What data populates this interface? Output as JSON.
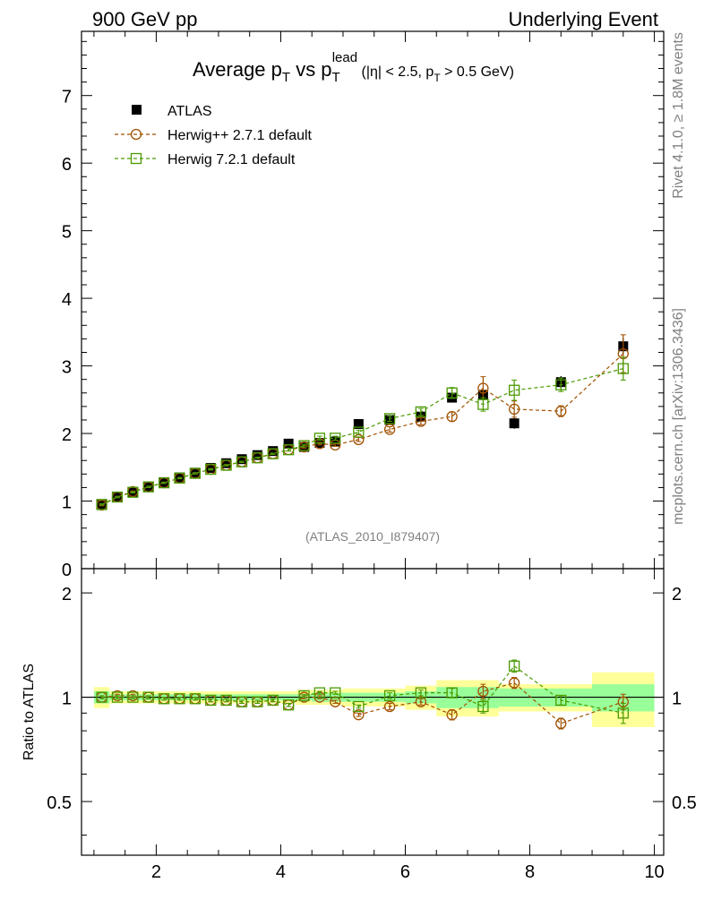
{
  "header": {
    "left": "900 GeV pp",
    "right": "Underlying Event"
  },
  "side": {
    "rivet": "Rivet 4.1.0, ≥ 1.8M events",
    "source": "mcplots.cern.ch [arXiv:1306.3436]"
  },
  "chart_data": {
    "type": "line",
    "title": "Average pT vs pT^lead (|η| < 2.5, pT > 0.5 GeV)",
    "title_parts": {
      "main": "Average p",
      "sub1": "T",
      "vs": " vs p",
      "sub2": "T",
      "sup": "lead",
      "cond_a": " (|η| < 2.5, p",
      "cond_sub": "T",
      "cond_b": " > 0.5 GeV)"
    },
    "analysis_tag": "(ATLAS_2010_I879407)",
    "xlim": [
      0.8,
      10.15
    ],
    "ylim": [
      0,
      7.95
    ],
    "ratio_ylim": [
      0.35,
      2.35
    ],
    "ratio_ylabel": "Ratio to ATLAS",
    "x_ticks": [
      2,
      4,
      6,
      8,
      10
    ],
    "x_tick_labels": [
      "2",
      "4",
      "6",
      "8",
      "10"
    ],
    "y_ticks": [
      0,
      1,
      2,
      3,
      4,
      5,
      6,
      7
    ],
    "y_tick_labels": [
      "0",
      "1",
      "2",
      "3",
      "4",
      "5",
      "6",
      "7"
    ],
    "ratio_ticks": [
      0.5,
      1,
      2
    ],
    "ratio_tick_labels": [
      "0.5",
      "1",
      "2"
    ],
    "legend_position": "top-left",
    "x": [
      1.125,
      1.375,
      1.625,
      1.875,
      2.125,
      2.375,
      2.625,
      2.875,
      3.125,
      3.375,
      3.625,
      3.875,
      4.125,
      4.375,
      4.625,
      4.875,
      5.25,
      5.75,
      6.25,
      6.75,
      7.25,
      7.75,
      8.5,
      9.5
    ],
    "band_edges": [
      1.0,
      1.25,
      1.5,
      1.75,
      2.0,
      2.25,
      2.5,
      2.75,
      3.0,
      3.25,
      3.5,
      3.75,
      4.0,
      4.25,
      4.5,
      4.75,
      5.0,
      5.5,
      6.0,
      6.5,
      7.0,
      7.5,
      8.0,
      9.0,
      10.0
    ],
    "series": [
      {
        "name": "ATLAS",
        "kind": "data",
        "color": "#000000",
        "values": [
          0.94,
          1.06,
          1.13,
          1.21,
          1.28,
          1.35,
          1.42,
          1.49,
          1.56,
          1.62,
          1.68,
          1.74,
          1.85,
          1.8,
          1.86,
          1.88,
          2.14,
          2.2,
          2.25,
          2.53,
          2.57,
          2.15,
          2.76,
          3.29
        ],
        "stat_err": [
          0.01,
          0.01,
          0.01,
          0.01,
          0.01,
          0.01,
          0.01,
          0.01,
          0.01,
          0.01,
          0.01,
          0.01,
          0.02,
          0.02,
          0.02,
          0.02,
          0.02,
          0.03,
          0.04,
          0.05,
          0.06,
          0.08,
          0.09,
          0.12
        ]
      },
      {
        "name": "Herwig++ 2.7.1 default",
        "kind": "mc",
        "marker": "circle",
        "color": "#a05000",
        "values": [
          0.94,
          1.06,
          1.14,
          1.21,
          1.27,
          1.34,
          1.41,
          1.47,
          1.53,
          1.58,
          1.64,
          1.7,
          1.76,
          1.8,
          1.85,
          1.83,
          1.91,
          2.06,
          2.18,
          2.25,
          2.67,
          2.36,
          2.33,
          3.18
        ],
        "errors": [
          0.01,
          0.01,
          0.01,
          0.01,
          0.01,
          0.01,
          0.01,
          0.01,
          0.01,
          0.01,
          0.01,
          0.01,
          0.02,
          0.02,
          0.02,
          0.02,
          0.03,
          0.04,
          0.05,
          0.07,
          0.17,
          0.12,
          0.08,
          0.28
        ]
      },
      {
        "name": "Herwig 7.2.1 default",
        "kind": "mc",
        "marker": "square",
        "color": "#4a9a00",
        "values": [
          0.95,
          1.06,
          1.13,
          1.21,
          1.27,
          1.34,
          1.41,
          1.47,
          1.53,
          1.58,
          1.64,
          1.7,
          1.76,
          1.82,
          1.93,
          1.93,
          2.02,
          2.22,
          2.32,
          2.6,
          2.43,
          2.64,
          2.72,
          2.96
        ],
        "errors": [
          0.01,
          0.01,
          0.01,
          0.01,
          0.01,
          0.01,
          0.01,
          0.01,
          0.01,
          0.01,
          0.01,
          0.01,
          0.02,
          0.02,
          0.03,
          0.03,
          0.03,
          0.04,
          0.05,
          0.08,
          0.1,
          0.15,
          0.1,
          0.17
        ]
      }
    ],
    "ratio_series": [
      {
        "name": "Herwig++ 2.7.1 default",
        "values": [
          1.0,
          1.01,
          1.01,
          1.0,
          0.99,
          0.99,
          0.99,
          0.98,
          0.98,
          0.97,
          0.97,
          0.98,
          0.95,
          1.0,
          1.0,
          0.97,
          0.89,
          0.94,
          0.97,
          0.89,
          1.04,
          1.1,
          0.84,
          0.97
        ],
        "errors": [
          0.01,
          0.01,
          0.01,
          0.01,
          0.01,
          0.01,
          0.01,
          0.01,
          0.01,
          0.01,
          0.01,
          0.01,
          0.01,
          0.01,
          0.01,
          0.01,
          0.01,
          0.02,
          0.02,
          0.03,
          0.05,
          0.04,
          0.03,
          0.05
        ]
      },
      {
        "name": "Herwig 7.2.1 default",
        "values": [
          1.0,
          1.0,
          1.0,
          1.0,
          0.99,
          0.99,
          0.99,
          0.98,
          0.98,
          0.97,
          0.97,
          0.98,
          0.95,
          1.01,
          1.03,
          1.03,
          0.94,
          1.01,
          1.03,
          1.03,
          0.94,
          1.23,
          0.98,
          0.9
        ],
        "errors": [
          0.01,
          0.01,
          0.01,
          0.01,
          0.01,
          0.01,
          0.01,
          0.01,
          0.01,
          0.01,
          0.01,
          0.01,
          0.01,
          0.01,
          0.01,
          0.01,
          0.01,
          0.02,
          0.02,
          0.03,
          0.04,
          0.05,
          0.03,
          0.06
        ]
      }
    ],
    "ratio_uncertainty": {
      "stat": [
        0.04,
        0.02,
        0.02,
        0.02,
        0.02,
        0.02,
        0.02,
        0.02,
        0.02,
        0.02,
        0.02,
        0.02,
        0.02,
        0.02,
        0.03,
        0.03,
        0.03,
        0.03,
        0.04,
        0.07,
        0.07,
        0.06,
        0.06,
        0.09
      ],
      "total": [
        0.07,
        0.04,
        0.04,
        0.04,
        0.04,
        0.04,
        0.04,
        0.04,
        0.04,
        0.04,
        0.04,
        0.04,
        0.04,
        0.05,
        0.05,
        0.05,
        0.06,
        0.06,
        0.08,
        0.12,
        0.12,
        0.09,
        0.09,
        0.18
      ]
    }
  }
}
